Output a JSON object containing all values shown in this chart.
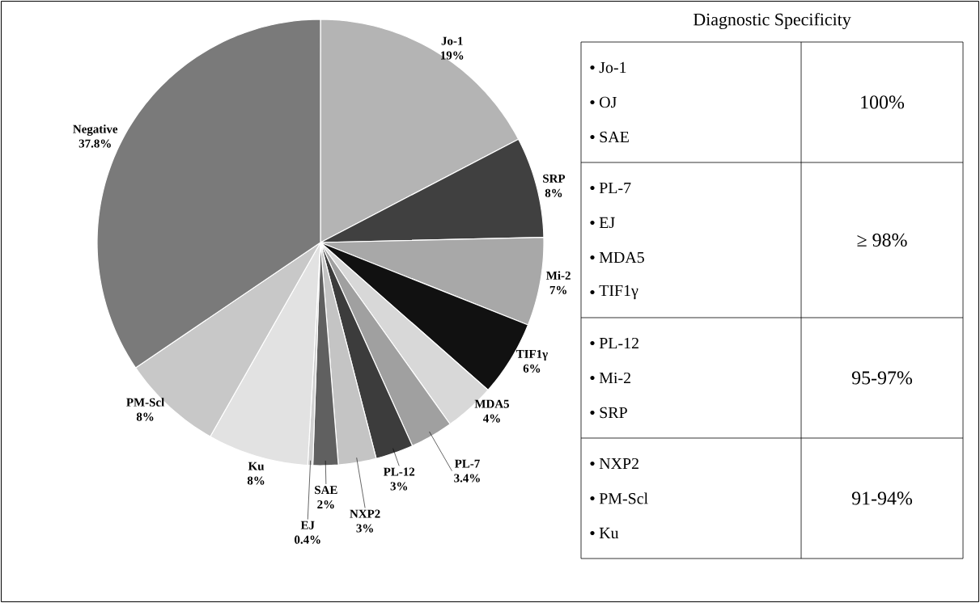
{
  "chart_data": [
    {
      "type": "pie",
      "categories": [
        "Jo-1",
        "SRP",
        "Mi-2",
        "TIF1γ",
        "MDA5",
        "PL-7",
        "PL-12",
        "NXP2",
        "SAE",
        "EJ",
        "Ku",
        "PM-Scl",
        "Negative"
      ],
      "values": [
        19,
        8,
        7,
        6,
        4,
        3.4,
        3,
        3,
        2,
        0.4,
        8,
        8,
        37.8
      ],
      "value_labels": [
        "19%",
        "8%",
        "7%",
        "6%",
        "4%",
        "3.4%",
        "3%",
        "3%",
        "2%",
        "0.4%",
        "8%",
        "8%",
        "37.8%"
      ],
      "colors": [
        "#b4b4b4",
        "#404040",
        "#a8a8a8",
        "#111111",
        "#d8d8d8",
        "#a0a0a0",
        "#3c3c3c",
        "#c4c4c4",
        "#606060",
        "#d0d0d0",
        "#e2e2e2",
        "#c8c8c8",
        "#7a7a7a"
      ]
    },
    {
      "type": "other",
      "title": "Diagnostic Specificity",
      "y_categories": [
        "100%",
        "≥ 98%",
        "95-97%",
        "91-94%"
      ],
      "cell_labels": [
        [
          "Jo-1",
          "OJ",
          "SAE"
        ],
        [
          "PL-7",
          "EJ",
          "MDA5",
          "TIF1γ"
        ],
        [
          "PL-12",
          "Mi-2",
          "SRP"
        ],
        [
          "NXP2",
          "PM-Scl",
          "Ku"
        ]
      ]
    }
  ]
}
